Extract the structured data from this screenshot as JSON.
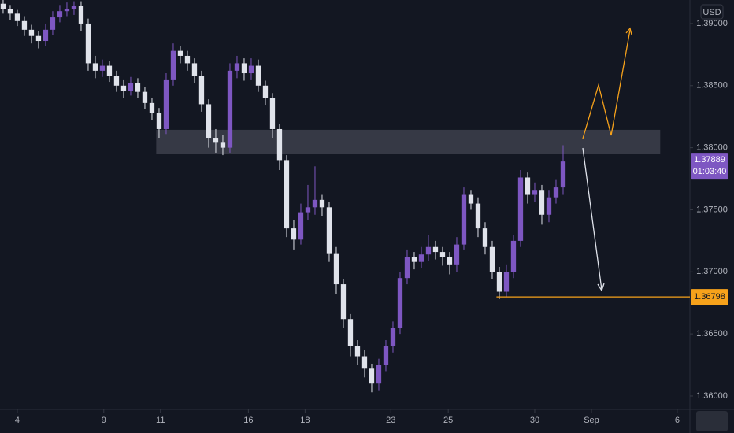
{
  "chart_data": {
    "type": "candlestick",
    "currency": "USD",
    "open": [
      1.3916,
      1.3912,
      1.3908,
      1.3902,
      1.3895,
      1.389,
      1.3886,
      1.3895,
      1.3905,
      1.391,
      1.3912,
      1.3914,
      1.39,
      1.3868,
      1.3862,
      1.3866,
      1.3858,
      1.385,
      1.3846,
      1.3852,
      1.3845,
      1.3836,
      1.3828,
      1.3815,
      1.3855,
      1.3878,
      1.3874,
      1.3868,
      1.3858,
      1.3835,
      1.3808,
      1.3804,
      1.38,
      1.3862,
      1.3868,
      1.386,
      1.3866,
      1.385,
      1.384,
      1.3815,
      1.379,
      1.3735,
      1.3726,
      1.3748,
      1.3752,
      1.3758,
      1.3752,
      1.3715,
      1.369,
      1.3662,
      1.364,
      1.3632,
      1.3622,
      1.361,
      1.3625,
      1.364,
      1.3655,
      1.3695,
      1.3712,
      1.3708,
      1.3714,
      1.372,
      1.3716,
      1.3712,
      1.3706,
      1.3722,
      1.3762,
      1.3755,
      1.3735,
      1.372,
      1.37,
      1.3684,
      1.37,
      1.3725,
      1.3776,
      1.3762,
      1.3766,
      1.3746,
      1.376,
      1.3768
    ],
    "high": [
      1.392,
      1.3915,
      1.3911,
      1.3906,
      1.3899,
      1.3894,
      1.39,
      1.391,
      1.3915,
      1.3917,
      1.3918,
      1.3918,
      1.3904,
      1.3874,
      1.3871,
      1.387,
      1.3862,
      1.3855,
      1.3857,
      1.3856,
      1.3849,
      1.384,
      1.3832,
      1.386,
      1.3884,
      1.3882,
      1.3878,
      1.3872,
      1.3862,
      1.3839,
      1.3815,
      1.381,
      1.3868,
      1.3874,
      1.3872,
      1.3872,
      1.3871,
      1.3854,
      1.3844,
      1.3819,
      1.3794,
      1.3742,
      1.3755,
      1.377,
      1.3785,
      1.3762,
      1.3756,
      1.372,
      1.3694,
      1.3666,
      1.3645,
      1.3637,
      1.3626,
      1.363,
      1.3645,
      1.366,
      1.37,
      1.3718,
      1.3716,
      1.372,
      1.373,
      1.3725,
      1.372,
      1.3716,
      1.3728,
      1.3768,
      1.3766,
      1.376,
      1.374,
      1.3725,
      1.3704,
      1.3706,
      1.373,
      1.3782,
      1.378,
      1.3772,
      1.377,
      1.3766,
      1.3774,
      1.3802
    ],
    "low": [
      1.3908,
      1.3903,
      1.3898,
      1.389,
      1.3884,
      1.388,
      1.3882,
      1.3891,
      1.3901,
      1.3906,
      1.3907,
      1.3894,
      1.3862,
      1.3856,
      1.3857,
      1.3853,
      1.3845,
      1.384,
      1.3842,
      1.384,
      1.3831,
      1.3822,
      1.3808,
      1.3811,
      1.385,
      1.3868,
      1.3862,
      1.3852,
      1.3829,
      1.38,
      1.3796,
      1.3794,
      1.3796,
      1.3856,
      1.3854,
      1.3855,
      1.3845,
      1.3834,
      1.3808,
      1.3782,
      1.3728,
      1.3718,
      1.3722,
      1.3742,
      1.3746,
      1.3745,
      1.3708,
      1.3682,
      1.3655,
      1.3632,
      1.3625,
      1.3615,
      1.3603,
      1.3604,
      1.362,
      1.3635,
      1.365,
      1.369,
      1.3702,
      1.3703,
      1.3709,
      1.371,
      1.3705,
      1.3698,
      1.37,
      1.3718,
      1.375,
      1.3728,
      1.3714,
      1.3694,
      1.3678,
      1.368,
      1.3695,
      1.372,
      1.3755,
      1.3756,
      1.3738,
      1.374,
      1.3755,
      1.3762
    ],
    "close": [
      1.3912,
      1.3908,
      1.3902,
      1.3895,
      1.389,
      1.3886,
      1.3895,
      1.3905,
      1.391,
      1.3912,
      1.3914,
      1.39,
      1.3868,
      1.3862,
      1.3866,
      1.3858,
      1.385,
      1.3846,
      1.3852,
      1.3845,
      1.3836,
      1.3828,
      1.3815,
      1.3855,
      1.3878,
      1.3874,
      1.3868,
      1.3858,
      1.3835,
      1.3808,
      1.3804,
      1.38,
      1.3862,
      1.3868,
      1.386,
      1.3866,
      1.385,
      1.384,
      1.3815,
      1.379,
      1.3735,
      1.3726,
      1.3748,
      1.3752,
      1.3758,
      1.3752,
      1.3715,
      1.369,
      1.3662,
      1.364,
      1.3632,
      1.3622,
      1.361,
      1.3625,
      1.364,
      1.3655,
      1.3695,
      1.3712,
      1.3708,
      1.3714,
      1.372,
      1.3716,
      1.3712,
      1.3706,
      1.3722,
      1.3762,
      1.3755,
      1.3735,
      1.372,
      1.37,
      1.3684,
      1.37,
      1.3725,
      1.3776,
      1.3762,
      1.3766,
      1.3746,
      1.376,
      1.3768,
      1.37889
    ],
    "up_color": "#7e57c2",
    "down_color": "#e0e3eb",
    "xlim": [
      -0.44,
      96.89
    ],
    "xticks": [
      {
        "value": 2,
        "label": "4"
      },
      {
        "value": 14.2,
        "label": "9"
      },
      {
        "value": 22.2,
        "label": "11"
      },
      {
        "value": 34.6,
        "label": "16"
      },
      {
        "value": 42.6,
        "label": "18"
      },
      {
        "value": 54.7,
        "label": "23"
      },
      {
        "value": 62.8,
        "label": "25"
      },
      {
        "value": 75,
        "label": "30"
      },
      {
        "value": 83,
        "label": "Sep"
      },
      {
        "value": 95.1,
        "label": "6"
      }
    ],
    "ylim": [
      1.35892,
      1.3919
    ],
    "yticks": [
      {
        "value": 1.39,
        "label": "1.39000"
      },
      {
        "value": 1.385,
        "label": "1.38500"
      },
      {
        "value": 1.38,
        "label": "1.38000"
      },
      {
        "value": 1.375,
        "label": "1.37500"
      },
      {
        "value": 1.37,
        "label": "1.37000"
      },
      {
        "value": 1.365,
        "label": "1.36500"
      },
      {
        "value": 1.36,
        "label": "1.36000"
      }
    ],
    "zone": {
      "x": [
        21.6,
        92.7
      ],
      "y": [
        1.37948,
        1.38144
      ]
    },
    "level": {
      "value": 1.36798,
      "from": 69.6,
      "color": "#f7a21b"
    },
    "countdown": "01:03:40",
    "grid": false
  }
}
